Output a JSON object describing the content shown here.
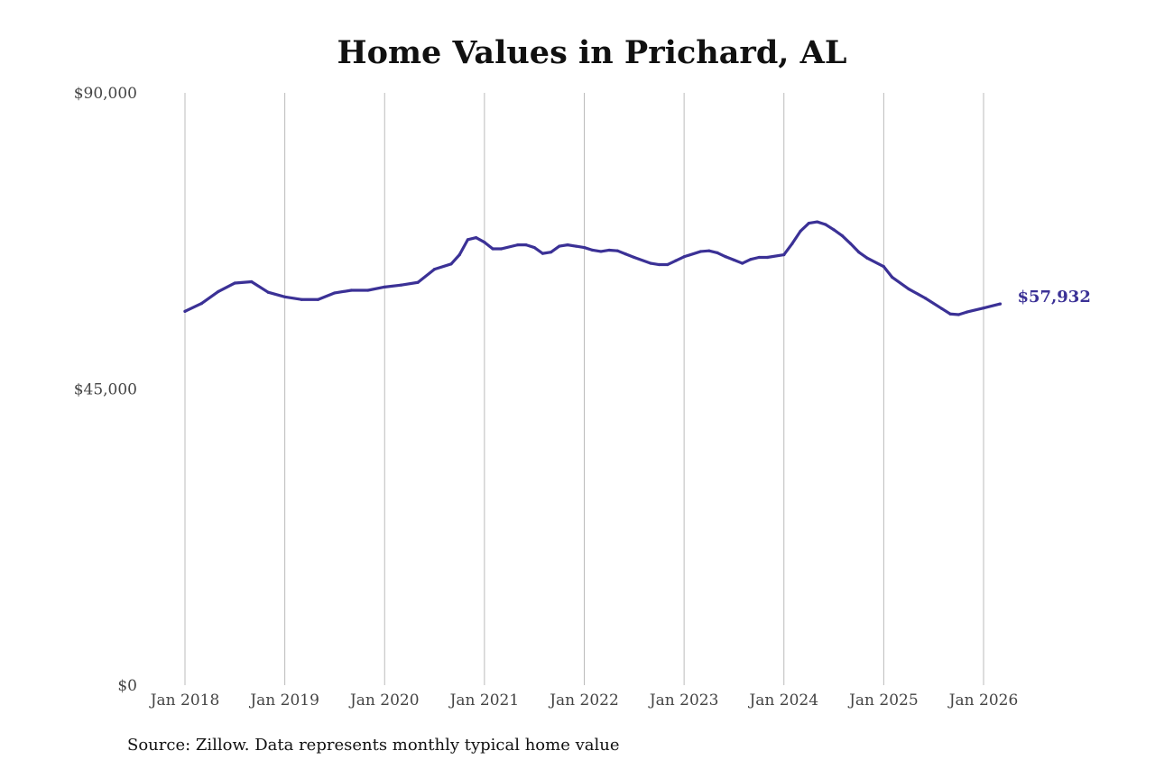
{
  "chart_data": {
    "type": "line",
    "title": "Home Values in Prichard, AL",
    "xlabel": "",
    "ylabel": "",
    "ylim": [
      0,
      90000
    ],
    "xlim": [
      "2018-01",
      "2026-03"
    ],
    "yticks": [
      {
        "value": 0,
        "label": "$0"
      },
      {
        "value": 45000,
        "label": "$45,000"
      },
      {
        "value": 90000,
        "label": "$90,000"
      }
    ],
    "xticks": [
      {
        "value": "2018-01",
        "label": "Jan 2018"
      },
      {
        "value": "2019-01",
        "label": "Jan 2019"
      },
      {
        "value": "2020-01",
        "label": "Jan 2020"
      },
      {
        "value": "2021-01",
        "label": "Jan 2021"
      },
      {
        "value": "2022-01",
        "label": "Jan 2022"
      },
      {
        "value": "2023-01",
        "label": "Jan 2023"
      },
      {
        "value": "2024-01",
        "label": "Jan 2024"
      },
      {
        "value": "2025-01",
        "label": "Jan 2025"
      },
      {
        "value": "2026-01",
        "label": "Jan 2026"
      }
    ],
    "grid": {
      "vertical": true,
      "horizontal": false
    },
    "line_color": "#3b3196",
    "grid_color": "#bbbbbb",
    "end_label": "$57,932",
    "series": [
      {
        "x": [
          "2018-01",
          "2018-03",
          "2018-05",
          "2018-07",
          "2018-09",
          "2018-11",
          "2019-01",
          "2019-03",
          "2019-05",
          "2019-07",
          "2019-09",
          "2019-11",
          "2020-01",
          "2020-03",
          "2020-05",
          "2020-07",
          "2020-09",
          "2020-10",
          "2020-11",
          "2020-12",
          "2021-01",
          "2021-02",
          "2021-03",
          "2021-05",
          "2021-06",
          "2021-07",
          "2021-08",
          "2021-09",
          "2021-10",
          "2021-11",
          "2021-12",
          "2022-01",
          "2022-02",
          "2022-03",
          "2022-04",
          "2022-05",
          "2022-06",
          "2022-07",
          "2022-09",
          "2022-10",
          "2022-11",
          "2022-12",
          "2023-01",
          "2023-03",
          "2023-04",
          "2023-05",
          "2023-06",
          "2023-07",
          "2023-08",
          "2023-09",
          "2023-10",
          "2023-11",
          "2024-01",
          "2024-02",
          "2024-03",
          "2024-04",
          "2024-05",
          "2024-06",
          "2024-07",
          "2024-08",
          "2024-09",
          "2024-10",
          "2024-11",
          "2025-01",
          "2025-02",
          "2025-04",
          "2025-06",
          "2025-08",
          "2025-09",
          "2025-10",
          "2025-11",
          "2026-01",
          "2026-03"
        ],
        "y": [
          56800,
          58000,
          59800,
          61100,
          61300,
          59700,
          59000,
          58600,
          58600,
          59600,
          60000,
          60000,
          60500,
          60800,
          61200,
          63200,
          64000,
          65400,
          67700,
          68000,
          67300,
          66300,
          66300,
          66900,
          66900,
          66500,
          65600,
          65800,
          66700,
          66900,
          66700,
          66500,
          66100,
          65900,
          66100,
          66000,
          65500,
          65000,
          64100,
          63900,
          63900,
          64500,
          65100,
          65900,
          66000,
          65700,
          65100,
          64600,
          64100,
          64700,
          65000,
          65000,
          65400,
          67100,
          69000,
          70200,
          70400,
          70000,
          69200,
          68300,
          67100,
          65800,
          64900,
          63600,
          62000,
          60200,
          58800,
          57200,
          56400,
          56300,
          56700,
          57300,
          57932
        ]
      }
    ]
  },
  "source_note": "Source: Zillow. Data represents monthly typical home value"
}
